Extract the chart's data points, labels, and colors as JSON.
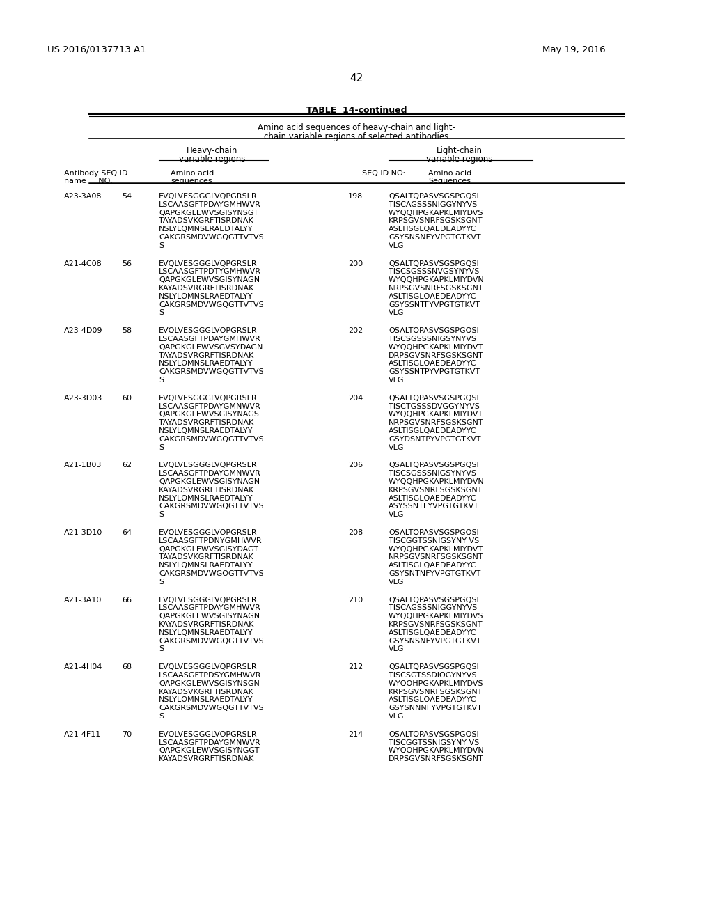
{
  "patent_number": "US 2016/0137713 A1",
  "date": "May 19, 2016",
  "page_number": "42",
  "table_title": "TABLE  14-continued",
  "table_subtitle_1": "Amino acid sequences of heavy-chain and light-",
  "table_subtitle_2": "chain variable regions of selected antibodies",
  "entries": [
    {
      "name": "A23-3A08",
      "hc_seq_id": "54",
      "hc_seq": [
        "EVQLVESGGGLVQPGRSLR",
        "LSCAASGFTPDAYGMHWVR",
        "QAPGKGLEWVSGISYNSGT",
        "TAYADSVKGRFTISRDNAK",
        "NSLYLQMNSLRAEDTALYY",
        "CAKGRSMDVWGQGTTVTVS",
        "S"
      ],
      "lc_seq_id": "198",
      "lc_seq": [
        "QSALTQPASVSGSPGQSI",
        "TISCAGSSSNIGGYNYVS",
        "WYQQHPGKAPKLMIYDVS",
        "KRPSGVSNRFSGSKSGNT",
        "ASLTISGLQAEDEADYYC",
        "GSYSNSNFYVPGTGTKVT",
        "VLG"
      ]
    },
    {
      "name": "A21-4C08",
      "hc_seq_id": "56",
      "hc_seq": [
        "EVQLVESGGGLVQPGRSLR",
        "LSCAASGFTPDTYGMHWVR",
        "QAPGKGLEWVSGISYNAGN",
        "KAYADSVRGRFTISRDNAK",
        "NSLYLQMNSLRAEDTALYY",
        "CAKGRSMDVWGQGTTVTVS",
        "S"
      ],
      "lc_seq_id": "200",
      "lc_seq": [
        "QSALTQPASVSGSPGQSI",
        "TISCSGSSSNVGSYNYVS",
        "WYQQHPGKAPKLMIYDVN",
        "NRPSGVSNRFSGSKSGNT",
        "ASLTISGLQAEDEADYYC",
        "GSYSSNTFYVPGTGTKVT",
        "VLG"
      ]
    },
    {
      "name": "A23-4D09",
      "hc_seq_id": "58",
      "hc_seq": [
        "EVQLVESGGGLVQPGRSLR",
        "LSCAASGFTPDAYGMHWVR",
        "QAPGKGLEWVSGVSYDAGN",
        "TAYADSVRGRFTISRDNAK",
        "NSLYLQMNSLRAEDTALYY",
        "CAKGRSMDVWGQGTTVTVS",
        "S"
      ],
      "lc_seq_id": "202",
      "lc_seq": [
        "QSALTQPASVSGSPGQSI",
        "TISCSGSSSNIGSYNYVS",
        "WYQQHPGKAPKLMIYDVT",
        "DRPSGVSNRFSGSKSGNT",
        "ASLTISGLQAEDEADYYC",
        "GSYSSNTPYVPGTGTKVT",
        "VLG"
      ]
    },
    {
      "name": "A23-3D03",
      "hc_seq_id": "60",
      "hc_seq": [
        "EVQLVESGGGLVQPGRSLR",
        "LSCAASGFTPDAYGMNWVR",
        "QAPGKGLEWVSGISYNAGS",
        "TAYADSVRGRFTISRDNAK",
        "NSLYLQMNSLRAEDTALYY",
        "CAKGRSMDVWGQGTTVTVS",
        "S"
      ],
      "lc_seq_id": "204",
      "lc_seq": [
        "QSALTQPASVSGSPGQSI",
        "TISCTGSSSDVGGYNYVS",
        "WYQQHPGKAPKLMIYDVT",
        "NRPSGVSNRFSGSKSGNT",
        "ASLTISGLQAEDEADYYC",
        "GSYDSNTPYVPGTGTKVT",
        "VLG"
      ]
    },
    {
      "name": "A21-1B03",
      "hc_seq_id": "62",
      "hc_seq": [
        "EVQLVESGGGLVQPGRSLR",
        "LSCAASGFTPDAYGMNWVR",
        "QAPGKGLEWVSGISYNAGN",
        "KAYADSVRGRFTISRDNAK",
        "NSLYLQMNSLRAEDTALYY",
        "CAKGRSMDVWGQGTTVTVS",
        "S"
      ],
      "lc_seq_id": "206",
      "lc_seq": [
        "QSALTQPASVSGSPGQSI",
        "TISCSGSSSNIGSYNYVS",
        "WYQQHPGKAPKLMIYDVN",
        "KRPSGVSNRFSGSKSGNT",
        "ASLTISGLQAEDEADYYC",
        "ASYSSNTFYVPGTGTKVT",
        "VLG"
      ]
    },
    {
      "name": "A21-3D10",
      "hc_seq_id": "64",
      "hc_seq": [
        "EVQLVESGGGLVQPGRSLR",
        "LSCAASGFTPDNYGMHWVR",
        "QAPGKGLEWVSGISYDAGT",
        "TAYADSVKGRFTISRDNAK",
        "NSLYLQMNSLRAEDTALYY",
        "CAKGRSMDVWGQGTTVTVS",
        "S"
      ],
      "lc_seq_id": "208",
      "lc_seq": [
        "QSALTQPASVSGSPGQSI",
        "TISCGGTSSNIGSYNY VS",
        "WYQQHPGKAPKLMIYDVT",
        "NRPSGVSNRFSGSKSGNT",
        "ASLTISGLQAEDEADYYC",
        "GSYSNTNFYVPGTGTKVT",
        "VLG"
      ]
    },
    {
      "name": "A21-3A10",
      "hc_seq_id": "66",
      "hc_seq": [
        "EVQLVESGGGLVQPGRSLR",
        "LSCAASGFTPDAYGMHWVR",
        "QAPGKGLEWVSGISYNAGN",
        "KAYADSVRGRFTISRDNAK",
        "NSLYLQMNSLRAEDTALYY",
        "CAKGRSMDVWGQGTTVTVS",
        "S"
      ],
      "lc_seq_id": "210",
      "lc_seq": [
        "QSALTQPASVSGSPGQSI",
        "TISCAGSSSNIGGYNYVS",
        "WYQQHPGKAPKLMIYDVS",
        "KRPSGVSNRFSGSKSGNT",
        "ASLTISGLQAEDEADYYC",
        "GSYSNSNFYVPGTGTKVT",
        "VLG"
      ]
    },
    {
      "name": "A21-4H04",
      "hc_seq_id": "68",
      "hc_seq": [
        "EVQLVESGGGLVQPGRSLR",
        "LSCAASGFTPDSYGMHWVR",
        "QAPGKGLEWVSGISYNSGN",
        "KAYADSVKGRFTISRDNAK",
        "NSLYLQMNSLRAEDTALYY",
        "CAKGRSMDVWGQGTTVTVS",
        "S"
      ],
      "lc_seq_id": "212",
      "lc_seq": [
        "QSALTQPASVSGSPGQSI",
        "TISCSGTSSDIOGYNYVS",
        "WYQQHPGKAPKLMIYDVS",
        "KRPSGVSNRFSGSKSGNT",
        "ASLTISGLQAEDEADYYC",
        "GSYSNNNFYVPGTGTKVT",
        "VLG"
      ]
    },
    {
      "name": "A21-4F11",
      "hc_seq_id": "70",
      "hc_seq": [
        "EVQLVESGGGLVQPGRSLR",
        "LSCAASGFTPDAYGMNWVR",
        "QAPGKGLEWVSGISYNGGT",
        "KAYADSVRGRFTISRDNAK"
      ],
      "lc_seq_id": "214",
      "lc_seq": [
        "QSALTQPASVSGSPGQSI",
        "TISCGGTSSNIGSYNY VS",
        "WYQQHPGKAPKLMIYDVN",
        "DRPSGVSNRFSGSKSGNT"
      ]
    }
  ]
}
